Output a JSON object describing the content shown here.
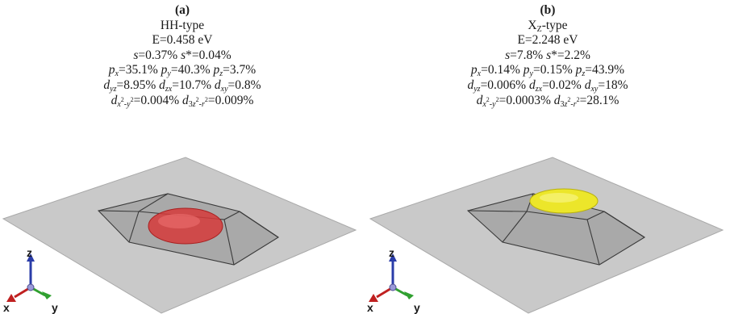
{
  "panel_a": {
    "tag": "(a)",
    "type": "HH-type",
    "energy": "E=0.458 eV",
    "s_line": {
      "s": "s",
      "s_val": "=0.37% ",
      "sstar": "s",
      "sstar_val": "*=0.04%"
    },
    "p_line": {
      "px": "=35.1% ",
      "py": "=40.3% ",
      "pz": "=3.7%"
    },
    "d_line": {
      "dyz": "=8.95% ",
      "dzx": "=10.7% ",
      "dxy": "=0.8%"
    },
    "d2_line": {
      "dx2y2": "=0.004% ",
      "d3z2r2": "=0.009%"
    },
    "axis_x": "x",
    "axis_y": "y",
    "axis_z": "z",
    "blob_color": "#d63a3a"
  },
  "panel_b": {
    "tag": "(b)",
    "type_main": "X",
    "type_sub": "Z",
    "type_rest": "-type",
    "energy": "E=2.248 eV",
    "s_line": {
      "s": "s",
      "s_val": "=7.8% ",
      "sstar": "s",
      "sstar_val": "*=2.2%"
    },
    "p_line": {
      "px": "=0.14% ",
      "py": "=0.15% ",
      "pz": "=43.9%"
    },
    "d_line": {
      "dyz": "=0.006% ",
      "dzx": "=0.02% ",
      "dxy": "=18%"
    },
    "d2_line": {
      "dx2y2": "=0.0003% ",
      "d3z2r2": "=28.1%"
    },
    "axis_x": "x",
    "axis_y": "y",
    "axis_z": "z",
    "blob_color": "#ece62a"
  }
}
